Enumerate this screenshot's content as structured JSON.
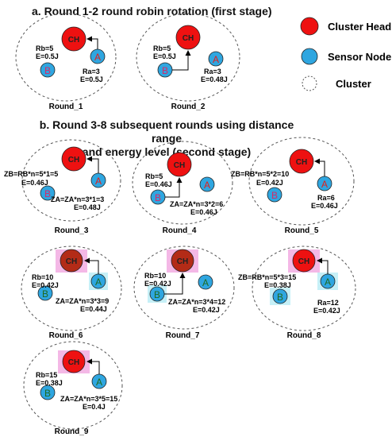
{
  "section_a": {
    "title": "a. Round 1-2 round robin rotation (first stage)"
  },
  "section_b": {
    "title_line1": "b. Round 3-8 subsequent rounds using distance range",
    "title_line2": "and energy level (second stage)"
  },
  "legend": {
    "cluster_head": "Cluster Head",
    "sensor_node": "Sensor Node",
    "cluster": "Cluster"
  },
  "colors": {
    "cluster_head": "#ee1111",
    "cluster_head_dark": "#b32b17",
    "sensor_node": "#2fa6e0",
    "highlight_pink": "#f4b8e6",
    "highlight_cyan": "#c6f0f7",
    "letter_a": "#e0201c",
    "letter_b": "#d42a6a",
    "letter_green": "#1f6a1f"
  },
  "node_labels": {
    "ch": "CH",
    "a": "A",
    "b": "B"
  },
  "rounds": [
    {
      "label": "Round_1",
      "text1": "Rb=5",
      "text2": "E=0.5J",
      "text3": "Ra=3",
      "text4": "E=0.5J"
    },
    {
      "label": "Round_2",
      "text1": "Rb=5",
      "text2": "E=0.5J",
      "text3": "Ra=3",
      "text4": "E=0.48J"
    },
    {
      "label": "Round_3",
      "text1": "ZB=RB*n=5*1=5",
      "text2": "E=0.46J",
      "text3": "ZA=ZA*n=3*1=3",
      "text4": "E=0.48J"
    },
    {
      "label": "Round_4",
      "text1": "Rb=5",
      "text2": "E=0.46J",
      "text3": "ZA=ZA*n=3*2=6",
      "text4": "E=0.46J"
    },
    {
      "label": "Round_5",
      "text1": "ZB=RB*n=5*2=10",
      "text2": "E=0.42J",
      "text3": "Ra=6",
      "text4": "E=0.46J"
    },
    {
      "label": "Round_6",
      "text1": "Rb=10",
      "text2": "E=0.42J",
      "text3": "ZA=ZA*n=3*3=9",
      "text4": "E=0.44J"
    },
    {
      "label": "Round_7",
      "text1": "Rb=10",
      "text2": "E=0.42J",
      "text3": "ZA=ZA*n=3*4=12",
      "text4": "E=0.42J"
    },
    {
      "label": "Round_8",
      "text1": "ZB=RB*n=5*3=15",
      "text2": "E=0.38J",
      "text3": "Ra=12",
      "text4": "E=0.42J"
    },
    {
      "label": "Round_9",
      "text1": "Rb=15",
      "text2": "E=0.38J",
      "text3": "ZA=ZA*n=3*5=15",
      "text4": "E=0.4J"
    }
  ]
}
